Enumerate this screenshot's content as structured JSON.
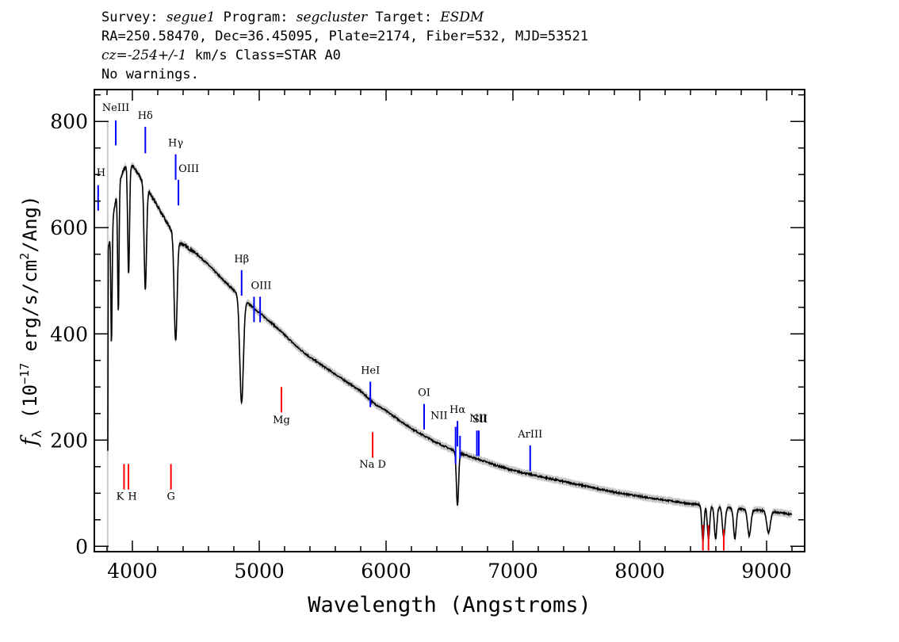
{
  "header": {
    "line1": {
      "survey_label": "Survey: ",
      "survey": "segue1",
      "program_label": " Program: ",
      "program": "segcluster",
      "target_label": " Target: ",
      "target": "ESDM"
    },
    "line2": "RA=250.58470, Dec=36.45095, Plate=2174, Fiber=532, MJD=53521",
    "line3": {
      "cz": "cz=-254+/-1",
      "cz_rest": " km/s Class=STAR A0"
    },
    "line4": "No warnings."
  },
  "colors": {
    "spectrum": "#000000",
    "error_band": "#c8c8c8",
    "emission_line": "#0000ff",
    "absorption_line": "#ff0000",
    "sky_mask": "#c8c8c8"
  },
  "chart_data": {
    "type": "line",
    "title": "",
    "xlabel": "Wavelength (Angstroms)",
    "ylabel": "f_λ (10^-17 erg/s/cm^2/Ang)",
    "xlim": [
      3700,
      9300
    ],
    "ylim": [
      -10,
      860
    ],
    "x_ticks": [
      4000,
      5000,
      6000,
      7000,
      8000,
      9000
    ],
    "y_ticks": [
      0,
      200,
      400,
      600,
      800
    ],
    "sky_mask_x": 3805,
    "continuum_points": [
      [
        3810,
        560
      ],
      [
        3860,
        640
      ],
      [
        3900,
        690
      ],
      [
        3950,
        718
      ],
      [
        4000,
        716
      ],
      [
        4050,
        700
      ],
      [
        4100,
        680
      ],
      [
        4150,
        660
      ],
      [
        4200,
        640
      ],
      [
        4250,
        618
      ],
      [
        4300,
        598
      ],
      [
        4340,
        580
      ],
      [
        4400,
        568
      ],
      [
        4500,
        552
      ],
      [
        4600,
        530
      ],
      [
        4700,
        505
      ],
      [
        4800,
        482
      ],
      [
        4900,
        460
      ],
      [
        5000,
        440
      ],
      [
        5100,
        420
      ],
      [
        5200,
        398
      ],
      [
        5300,
        375
      ],
      [
        5400,
        356
      ],
      [
        5500,
        340
      ],
      [
        5600,
        324
      ],
      [
        5700,
        308
      ],
      [
        5800,
        292
      ],
      [
        5900,
        270
      ],
      [
        6000,
        255
      ],
      [
        6100,
        238
      ],
      [
        6200,
        222
      ],
      [
        6300,
        208
      ],
      [
        6400,
        195
      ],
      [
        6500,
        184
      ],
      [
        6600,
        174
      ],
      [
        6700,
        166
      ],
      [
        6800,
        158
      ],
      [
        6900,
        150
      ],
      [
        7000,
        143
      ],
      [
        7200,
        132
      ],
      [
        7400,
        122
      ],
      [
        7600,
        112
      ],
      [
        7800,
        102
      ],
      [
        8000,
        94
      ],
      [
        8200,
        87
      ],
      [
        8400,
        80
      ],
      [
        8600,
        75
      ],
      [
        8800,
        70
      ],
      [
        9000,
        67
      ],
      [
        9200,
        60
      ]
    ],
    "absorption_features": [
      {
        "wave": 3835,
        "depth": 380,
        "width": 7
      },
      {
        "wave": 3889,
        "depth": 440,
        "width": 8
      },
      {
        "wave": 3970,
        "depth": 510,
        "width": 10
      },
      {
        "wave": 4102,
        "depth": 480,
        "width": 13
      },
      {
        "wave": 4341,
        "depth": 385,
        "width": 16
      },
      {
        "wave": 4861,
        "depth": 270,
        "width": 20
      },
      {
        "wave": 6563,
        "depth": 75,
        "width": 12
      },
      {
        "wave": 8498,
        "depth": 10,
        "width": 12
      },
      {
        "wave": 8542,
        "depth": 14,
        "width": 13
      },
      {
        "wave": 8598,
        "depth": 14,
        "width": 14
      },
      {
        "wave": 8662,
        "depth": 18,
        "width": 15
      },
      {
        "wave": 8750,
        "depth": 15,
        "width": 15
      },
      {
        "wave": 8863,
        "depth": 20,
        "width": 18
      },
      {
        "wave": 9015,
        "depth": 25,
        "width": 20
      }
    ],
    "emission_lines": [
      {
        "label": "H",
        "wave": 3730,
        "y_top": 680,
        "y_bottom": 632,
        "label_y": 697,
        "anchor": "start",
        "dx": -2
      },
      {
        "label": "NeIII",
        "wave": 3869,
        "y_top": 802,
        "y_bottom": 755,
        "label_y": 820,
        "anchor": "middle",
        "dx": 0
      },
      {
        "label": "Hδ",
        "wave": 4102,
        "y_top": 790,
        "y_bottom": 740,
        "label_y": 805,
        "anchor": "middle",
        "dx": 0
      },
      {
        "label": "Hγ",
        "wave": 4341,
        "y_top": 738,
        "y_bottom": 690,
        "label_y": 753,
        "anchor": "middle",
        "dx": 0
      },
      {
        "label": "OIII",
        "wave": 4363,
        "y_top": 690,
        "y_bottom": 642,
        "label_y": 705,
        "anchor": "start",
        "dx": 0
      },
      {
        "label": "Hβ",
        "wave": 4861,
        "y_top": 520,
        "y_bottom": 472,
        "label_y": 535,
        "anchor": "middle",
        "dx": 0
      },
      {
        "label": "OIII",
        "wave": 4959,
        "y_top": 470,
        "y_bottom": 422,
        "label_y": 485,
        "anchor": "start",
        "dx": -4
      },
      {
        "label": "OIII",
        "wave": 5007,
        "y_top": 470,
        "y_bottom": 422,
        "label_y": 485,
        "anchor": "none",
        "dx": 0
      },
      {
        "label": "HeI",
        "wave": 5876,
        "y_top": 310,
        "y_bottom": 262,
        "label_y": 325,
        "anchor": "middle",
        "dx": 0
      },
      {
        "label": "OI",
        "wave": 6300,
        "y_top": 268,
        "y_bottom": 220,
        "label_y": 283,
        "anchor": "middle",
        "dx": 0
      },
      {
        "label": "NII",
        "wave": 6548,
        "y_top": 225,
        "y_bottom": 155,
        "label_y": 240,
        "anchor": "end",
        "dx": -10
      },
      {
        "label": "Hα",
        "wave": 6563,
        "y_top": 236,
        "y_bottom": 188,
        "label_y": 251,
        "anchor": "middle",
        "dx": 0
      },
      {
        "label": "NII",
        "wave": 6583,
        "y_top": 208,
        "y_bottom": 165,
        "label_y": 235,
        "anchor": "start",
        "dx": 12
      },
      {
        "label": "SII",
        "wave": 6716,
        "y_top": 218,
        "y_bottom": 170,
        "label_y": 233,
        "anchor": "middle",
        "dx": 4
      },
      {
        "label": "SII",
        "wave": 6731,
        "y_top": 218,
        "y_bottom": 170,
        "label_y": 233,
        "anchor": "none",
        "dx": 0
      },
      {
        "label": "ArIII",
        "wave": 7136,
        "y_top": 190,
        "y_bottom": 142,
        "label_y": 205,
        "anchor": "middle",
        "dx": 0
      }
    ],
    "absorption_lines": [
      {
        "label": "K",
        "wave": 3934,
        "y_top": 155,
        "y_bottom": 107,
        "label_y": 88,
        "anchor": "middle",
        "dx": -5
      },
      {
        "label": "H",
        "wave": 3969,
        "y_top": 155,
        "y_bottom": 107,
        "label_y": 88,
        "anchor": "middle",
        "dx": 5
      },
      {
        "label": "G",
        "wave": 4304,
        "y_top": 155,
        "y_bottom": 107,
        "label_y": 88,
        "anchor": "middle",
        "dx": 0
      },
      {
        "label": "Mg",
        "wave": 5175,
        "y_top": 300,
        "y_bottom": 252,
        "label_y": 232,
        "anchor": "middle",
        "dx": 0
      },
      {
        "label": "Na D",
        "wave": 5894,
        "y_top": 215,
        "y_bottom": 167,
        "label_y": 148,
        "anchor": "middle",
        "dx": 0
      },
      {
        "label": "",
        "wave": 8498,
        "y_top": 40,
        "y_bottom": -8,
        "label_y": 0,
        "anchor": "none",
        "dx": 0
      },
      {
        "label": "",
        "wave": 8542,
        "y_top": 40,
        "y_bottom": -8,
        "label_y": 0,
        "anchor": "none",
        "dx": 0
      },
      {
        "label": "",
        "wave": 8662,
        "y_top": 32,
        "y_bottom": -8,
        "label_y": 0,
        "anchor": "none",
        "dx": 0
      }
    ]
  }
}
